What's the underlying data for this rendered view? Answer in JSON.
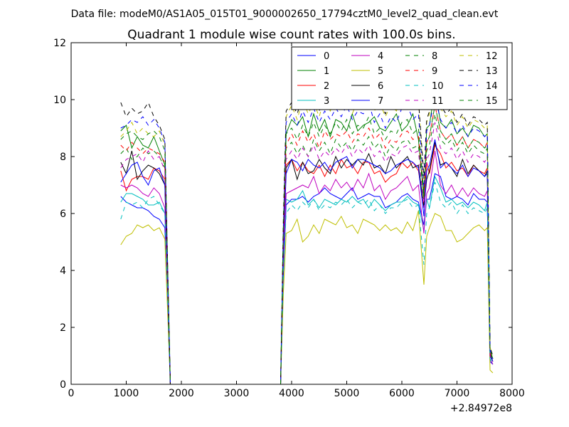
{
  "header": "Data file: modeM0/AS1A05_015T01_9000002650_17794cztM0_level2_quad_clean.evt",
  "chart_data": {
    "type": "line",
    "title": "Quadrant 1 module wise count rates with 100.0s bins.",
    "xlabel": "",
    "ylabel": "",
    "x_offset_label": "+2.84972e8",
    "xlim": [
      0,
      8000
    ],
    "ylim": [
      0,
      12
    ],
    "x_ticks": [
      0,
      1000,
      2000,
      3000,
      4000,
      5000,
      6000,
      7000,
      8000
    ],
    "y_ticks": [
      0,
      2,
      4,
      6,
      8,
      10,
      12
    ],
    "legend_position": "top-right",
    "legend_columns": 4,
    "x": [
      900,
      1000,
      1100,
      1200,
      1300,
      1400,
      1500,
      1600,
      1700,
      1800,
      1900,
      2000,
      2500,
      3000,
      3500,
      3800,
      3850,
      3900,
      4000,
      4100,
      4200,
      4300,
      4400,
      4500,
      4600,
      4700,
      4800,
      4900,
      5000,
      5100,
      5200,
      5300,
      5400,
      5500,
      5600,
      5700,
      5800,
      5900,
      6000,
      6100,
      6200,
      6300,
      6400,
      6450,
      6500,
      6600,
      6700,
      6800,
      6900,
      7000,
      7100,
      7200,
      7300,
      7400,
      7500,
      7550,
      7600,
      7650
    ],
    "series": [
      {
        "name": "0",
        "color": "#0000ff",
        "dash": "solid",
        "values": [
          6.6,
          6.4,
          6.3,
          6.2,
          6.2,
          6.1,
          5.9,
          5.8,
          5.5,
          0,
          0,
          0,
          0,
          0,
          0,
          0,
          3.8,
          6.3,
          6.5,
          6.5,
          6.6,
          6.4,
          6.6,
          6.7,
          6.9,
          6.7,
          6.6,
          6.5,
          6.7,
          6.9,
          6.5,
          6.6,
          6.7,
          6.6,
          6.6,
          6.2,
          6.3,
          6.4,
          6.6,
          6.7,
          6.5,
          6.4,
          5.6,
          6.5,
          6.5,
          7.4,
          7.3,
          6.6,
          6.5,
          6.6,
          6.5,
          6.3,
          6.7,
          6.5,
          6.5,
          6.4,
          0.8,
          0.7
        ]
      },
      {
        "name": "1",
        "color": "#008000",
        "dash": "solid",
        "values": [
          8.9,
          9.1,
          8.3,
          8.7,
          8.4,
          8.3,
          8.7,
          8.2,
          7.7,
          0,
          0,
          0,
          0,
          0,
          0,
          0,
          5.2,
          8.8,
          9.3,
          9.1,
          9.4,
          8.7,
          9.5,
          8.9,
          9.3,
          8.7,
          9.3,
          9.2,
          8.9,
          9.5,
          8.9,
          9.1,
          9.2,
          9.4,
          9.0,
          8.9,
          9.2,
          9.5,
          8.9,
          9.1,
          9.5,
          8.6,
          6.5,
          9.0,
          9.1,
          10.4,
          9.2,
          9.0,
          9.3,
          8.8,
          9.0,
          8.7,
          9.1,
          9.0,
          8.7,
          8.8,
          1.2,
          0.9
        ]
      },
      {
        "name": "2",
        "color": "#ff0000",
        "dash": "solid",
        "values": [
          7.5,
          6.8,
          7.2,
          7.3,
          7.3,
          7.2,
          7.6,
          7.5,
          7.2,
          0,
          0,
          0,
          0,
          0,
          0,
          0,
          4.5,
          7.7,
          7.9,
          7.5,
          7.8,
          7.5,
          7.4,
          7.7,
          7.3,
          7.7,
          7.4,
          7.9,
          7.6,
          7.7,
          7.4,
          7.8,
          7.8,
          7.4,
          7.5,
          7.1,
          7.3,
          7.4,
          7.8,
          7.6,
          7.8,
          7.5,
          6.3,
          7.8,
          7.4,
          8.4,
          8.1,
          7.6,
          7.8,
          7.5,
          7.6,
          7.3,
          7.7,
          7.5,
          7.4,
          7.6,
          1.0,
          0.8
        ]
      },
      {
        "name": "3",
        "color": "#00bfbf",
        "dash": "solid",
        "values": [
          6.4,
          6.7,
          6.7,
          6.6,
          6.5,
          6.3,
          6.3,
          6.4,
          6.0,
          0,
          0,
          0,
          0,
          0,
          0,
          0,
          4.0,
          6.5,
          6.4,
          6.5,
          6.8,
          6.3,
          6.5,
          6.2,
          6.5,
          6.4,
          6.3,
          6.5,
          6.4,
          6.6,
          6.4,
          6.5,
          6.2,
          6.5,
          6.3,
          6.1,
          6.3,
          6.4,
          6.4,
          6.6,
          6.4,
          6.3,
          5.4,
          6.5,
          6.2,
          7.3,
          6.9,
          6.4,
          6.5,
          6.3,
          6.4,
          6.2,
          6.4,
          6.3,
          6.1,
          6.4,
          0.9,
          0.7
        ]
      },
      {
        "name": "4",
        "color": "#bf00bf",
        "dash": "solid",
        "values": [
          7.0,
          6.9,
          7.0,
          6.9,
          6.7,
          6.6,
          6.9,
          6.7,
          6.2,
          0,
          0,
          0,
          0,
          0,
          0,
          0,
          4.2,
          6.7,
          6.8,
          6.9,
          7.0,
          6.9,
          7.3,
          6.7,
          7.0,
          6.8,
          7.2,
          6.9,
          7.1,
          6.8,
          7.2,
          6.9,
          7.4,
          6.8,
          7.0,
          6.5,
          6.8,
          6.9,
          7.1,
          7.3,
          6.8,
          7.0,
          5.3,
          6.7,
          6.9,
          8.2,
          7.0,
          6.7,
          7.0,
          6.6,
          6.9,
          6.6,
          6.9,
          6.7,
          6.6,
          6.8,
          0.9,
          0.7
        ]
      },
      {
        "name": "5",
        "color": "#bfbf00",
        "dash": "solid",
        "values": [
          4.9,
          5.2,
          5.3,
          5.6,
          5.5,
          5.6,
          5.4,
          5.5,
          5.1,
          0,
          0,
          0,
          0,
          0,
          0,
          0,
          3.2,
          5.3,
          5.4,
          5.8,
          5.0,
          5.2,
          5.6,
          5.3,
          5.8,
          5.7,
          5.6,
          5.9,
          5.5,
          5.6,
          5.3,
          5.8,
          5.7,
          5.6,
          5.4,
          5.6,
          5.4,
          5.5,
          5.3,
          5.7,
          5.4,
          6.1,
          3.5,
          5.2,
          5.5,
          6.0,
          5.9,
          5.4,
          5.4,
          5.0,
          5.1,
          5.3,
          5.5,
          5.6,
          5.4,
          5.5,
          0.5,
          0.4
        ]
      },
      {
        "name": "6",
        "color": "#000000",
        "dash": "solid",
        "values": [
          7.8,
          7.4,
          8.2,
          7.2,
          7.5,
          7.7,
          7.6,
          7.4,
          7.0,
          0,
          0,
          0,
          0,
          0,
          0,
          0,
          4.7,
          7.6,
          7.9,
          7.2,
          7.8,
          7.4,
          7.5,
          7.9,
          7.6,
          7.4,
          8.0,
          7.6,
          7.9,
          7.7,
          7.9,
          7.7,
          8.1,
          7.6,
          7.7,
          7.4,
          8.0,
          7.6,
          7.8,
          8.0,
          7.6,
          7.7,
          6.2,
          7.2,
          7.5,
          8.5,
          7.7,
          7.8,
          7.6,
          7.3,
          7.9,
          7.4,
          7.7,
          7.5,
          7.3,
          7.5,
          1.1,
          0.8
        ]
      },
      {
        "name": "7",
        "color": "#0000ff",
        "dash": "solid",
        "values": [
          7.1,
          7.4,
          7.7,
          7.8,
          7.3,
          7.0,
          7.5,
          7.6,
          7.0,
          0,
          0,
          0,
          0,
          0,
          0,
          0,
          4.6,
          7.4,
          7.9,
          7.8,
          7.5,
          7.9,
          7.7,
          7.6,
          7.8,
          7.5,
          7.8,
          7.9,
          8.0,
          7.6,
          7.9,
          7.9,
          7.8,
          7.7,
          7.6,
          7.4,
          7.5,
          7.7,
          7.8,
          7.9,
          7.8,
          7.6,
          5.9,
          7.5,
          7.7,
          8.6,
          7.6,
          7.8,
          7.6,
          7.4,
          7.7,
          7.3,
          7.6,
          7.5,
          7.3,
          7.4,
          1.0,
          0.8
        ]
      },
      {
        "name": "8",
        "color": "#008000",
        "dash": "dash",
        "values": [
          8.1,
          8.3,
          7.9,
          8.0,
          8.3,
          8.1,
          8.2,
          8.0,
          7.6,
          0,
          0,
          0,
          0,
          0,
          0,
          0,
          5.0,
          8.3,
          8.5,
          8.1,
          8.4,
          8.0,
          8.6,
          8.2,
          8.5,
          8.1,
          8.6,
          8.3,
          8.5,
          8.2,
          8.6,
          8.4,
          8.7,
          8.3,
          8.5,
          8.0,
          8.4,
          8.2,
          8.5,
          8.6,
          8.3,
          8.4,
          6.6,
          8.2,
          8.4,
          9.5,
          8.6,
          8.4,
          8.6,
          8.2,
          8.5,
          8.1,
          8.4,
          8.2,
          8.1,
          8.3,
          1.1,
          0.9
        ]
      },
      {
        "name": "9",
        "color": "#ff0000",
        "dash": "dash",
        "values": [
          8.4,
          8.2,
          8.5,
          8.3,
          8.1,
          8.3,
          8.2,
          8.1,
          7.8,
          0,
          0,
          0,
          0,
          0,
          0,
          0,
          5.1,
          8.4,
          8.8,
          8.4,
          8.9,
          8.5,
          8.8,
          8.3,
          8.9,
          8.6,
          8.8,
          8.7,
          8.9,
          8.5,
          8.8,
          8.7,
          9.0,
          8.6,
          8.8,
          8.3,
          8.6,
          8.5,
          8.8,
          8.9,
          8.6,
          8.7,
          6.8,
          8.5,
          8.7,
          9.8,
          8.9,
          8.6,
          8.8,
          8.4,
          8.7,
          8.3,
          8.6,
          8.5,
          8.3,
          8.5,
          1.1,
          0.9
        ]
      },
      {
        "name": "10",
        "color": "#00bfbf",
        "dash": "dash",
        "values": [
          5.8,
          6.4,
          6.3,
          6.4,
          6.2,
          6.5,
          6.6,
          6.3,
          6.0,
          0,
          0,
          0,
          0,
          0,
          0,
          0,
          3.9,
          6.0,
          6.3,
          6.1,
          6.4,
          6.2,
          6.5,
          6.1,
          6.3,
          6.2,
          6.4,
          6.3,
          6.5,
          6.2,
          6.4,
          6.3,
          6.5,
          6.1,
          6.3,
          6.0,
          6.2,
          6.2,
          6.4,
          6.5,
          6.2,
          6.3,
          4.2,
          6.0,
          6.2,
          7.1,
          6.4,
          6.2,
          6.4,
          6.0,
          6.3,
          6.0,
          6.2,
          6.1,
          6.0,
          6.2,
          0.9,
          0.7
        ]
      },
      {
        "name": "11",
        "color": "#bf00bf",
        "dash": "dash",
        "values": [
          7.6,
          7.9,
          8.0,
          8.1,
          7.8,
          8.2,
          7.9,
          8.0,
          7.5,
          0,
          0,
          0,
          0,
          0,
          0,
          0,
          4.9,
          7.9,
          8.2,
          7.9,
          8.3,
          8.0,
          8.4,
          7.9,
          8.2,
          8.0,
          8.3,
          8.1,
          8.4,
          8.0,
          8.3,
          8.1,
          8.4,
          8.0,
          8.2,
          7.8,
          8.1,
          8.0,
          8.3,
          8.4,
          8.1,
          8.2,
          6.2,
          7.9,
          8.1,
          9.2,
          8.3,
          8.1,
          8.3,
          7.9,
          8.2,
          7.8,
          8.1,
          8.0,
          7.8,
          8.0,
          1.0,
          0.8
        ]
      },
      {
        "name": "12",
        "color": "#bfbf00",
        "dash": "dash",
        "values": [
          8.7,
          8.9,
          9.2,
          8.8,
          9.0,
          8.8,
          8.7,
          8.9,
          8.4,
          0,
          0,
          0,
          0,
          0,
          0,
          0,
          5.6,
          9.4,
          9.8,
          9.3,
          10.0,
          9.5,
          9.9,
          9.4,
          10.1,
          9.6,
          10.0,
          9.7,
          10.2,
          9.5,
          10.0,
          9.8,
          10.3,
          9.6,
          9.9,
          9.4,
          9.8,
          9.6,
          10.1,
          10.2,
          9.7,
          9.9,
          7.2,
          9.2,
          9.5,
          10.6,
          9.7,
          9.4,
          9.6,
          9.1,
          9.4,
          9.0,
          9.3,
          9.2,
          9.0,
          9.1,
          1.3,
          1.0
        ]
      },
      {
        "name": "13",
        "color": "#000000",
        "dash": "dash",
        "values": [
          9.9,
          9.4,
          9.7,
          9.5,
          9.6,
          9.9,
          9.4,
          9.1,
          8.6,
          0,
          0,
          0,
          0,
          0,
          0,
          0,
          5.8,
          9.6,
          9.9,
          9.5,
          10.1,
          9.6,
          10.2,
          9.6,
          10.1,
          9.8,
          10.2,
          9.9,
          10.3,
          9.7,
          10.1,
          10.0,
          10.4,
          9.7,
          10.0,
          9.5,
          9.9,
          9.7,
          10.2,
          10.3,
          9.8,
          10.0,
          7.3,
          9.3,
          9.6,
          11.0,
          9.8,
          9.5,
          9.7,
          9.2,
          9.5,
          9.1,
          9.4,
          9.3,
          9.1,
          9.2,
          1.3,
          1.0
        ]
      },
      {
        "name": "14",
        "color": "#0000ff",
        "dash": "dash",
        "values": [
          9.0,
          9.1,
          9.3,
          9.2,
          9.4,
          9.1,
          9.3,
          9.0,
          8.5,
          0,
          0,
          0,
          0,
          0,
          0,
          0,
          5.5,
          9.2,
          9.5,
          9.1,
          9.6,
          9.2,
          9.7,
          9.2,
          9.6,
          9.3,
          9.7,
          9.4,
          9.8,
          9.3,
          9.6,
          9.5,
          9.9,
          9.2,
          9.5,
          9.0,
          9.4,
          9.2,
          9.7,
          9.8,
          9.3,
          9.5,
          6.9,
          8.9,
          9.1,
          10.1,
          9.3,
          9.0,
          9.2,
          8.8,
          9.1,
          8.7,
          9.0,
          8.9,
          8.7,
          8.8,
          1.2,
          0.9
        ]
      },
      {
        "name": "15",
        "color": "#008000",
        "dash": "dash",
        "values": [
          8.6,
          8.8,
          8.9,
          8.7,
          8.6,
          8.8,
          8.9,
          8.7,
          8.2,
          0,
          0,
          0,
          0,
          0,
          0,
          0,
          5.3,
          8.8,
          9.0,
          8.6,
          9.1,
          8.7,
          9.2,
          8.7,
          9.1,
          8.8,
          9.2,
          8.9,
          9.3,
          8.8,
          9.1,
          9.0,
          9.4,
          8.8,
          9.0,
          8.6,
          8.9,
          8.8,
          9.2,
          9.3,
          8.8,
          9.0,
          6.7,
          8.5,
          8.7,
          9.8,
          8.9,
          8.6,
          8.8,
          8.4,
          8.7,
          8.3,
          8.6,
          8.5,
          8.3,
          8.4,
          1.2,
          0.9
        ]
      }
    ]
  }
}
